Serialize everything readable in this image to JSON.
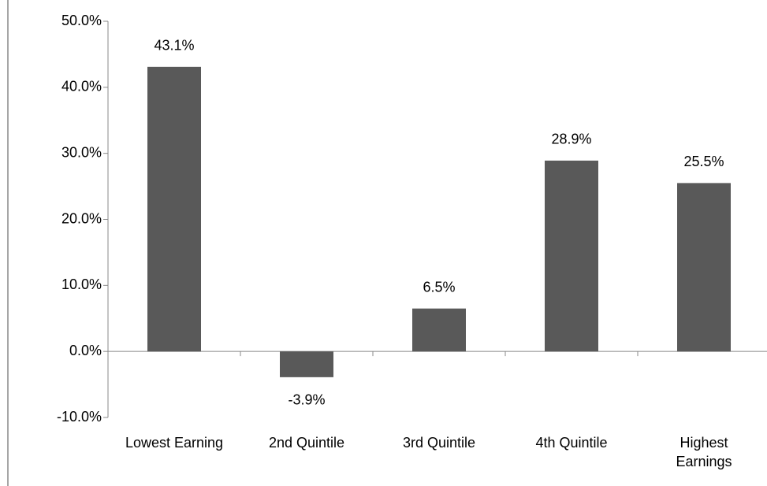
{
  "chart_data": {
    "type": "bar",
    "categories": [
      "Lowest Earning",
      "2nd Quintile",
      "3rd Quintile",
      "4th Quintile",
      "Highest Earnings"
    ],
    "values": [
      43.1,
      -3.9,
      6.5,
      28.9,
      25.5
    ],
    "value_labels": [
      "43.1%",
      "-3.9%",
      "6.5%",
      "28.9%",
      "25.5%"
    ],
    "color": "#595959",
    "ylim": [
      -10,
      50
    ],
    "yticks": [
      {
        "value": -10,
        "label": "-10.0%"
      },
      {
        "value": 0,
        "label": "0.0%"
      },
      {
        "value": 10,
        "label": "10.0%"
      },
      {
        "value": 20,
        "label": "20.0%"
      },
      {
        "value": 30,
        "label": "30.0%"
      },
      {
        "value": 40,
        "label": "40.0%"
      },
      {
        "value": 50,
        "label": "50.0%"
      }
    ]
  }
}
